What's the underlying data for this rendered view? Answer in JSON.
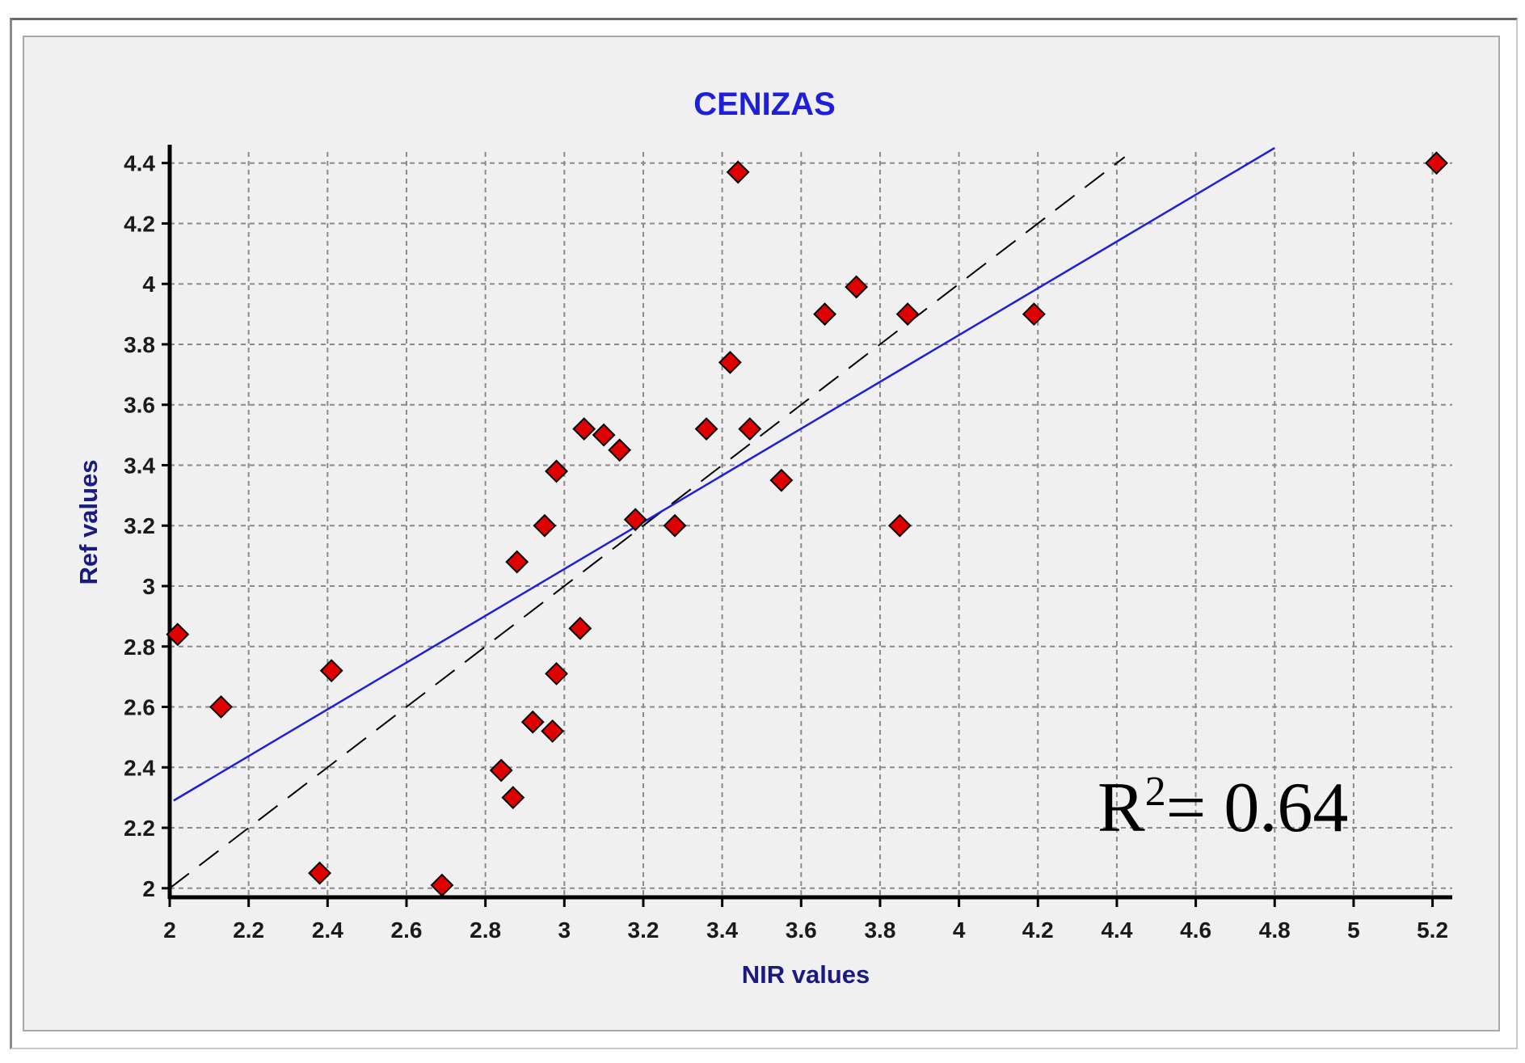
{
  "chart_data": {
    "type": "scatter",
    "title": "CENIZAS",
    "xlabel": "NIR values",
    "ylabel": "Ref values",
    "xlim": [
      2,
      5.25
    ],
    "ylim": [
      1.97,
      4.45
    ],
    "x_ticks": [
      "2",
      "2.2",
      "2.4",
      "2.6",
      "2.8",
      "3",
      "3.2",
      "3.4",
      "3.6",
      "3.8",
      "4",
      "4.2",
      "4.4",
      "4.6",
      "4.8",
      "5",
      "5.2"
    ],
    "y_ticks": [
      "2",
      "2.2",
      "2.4",
      "2.6",
      "2.8",
      "3",
      "3.2",
      "3.4",
      "3.6",
      "3.8",
      "4",
      "4.2",
      "4.4"
    ],
    "grid": true,
    "points": [
      {
        "x": 2.02,
        "y": 2.84
      },
      {
        "x": 2.13,
        "y": 2.6
      },
      {
        "x": 2.38,
        "y": 2.05
      },
      {
        "x": 2.41,
        "y": 2.72
      },
      {
        "x": 2.69,
        "y": 2.01
      },
      {
        "x": 2.84,
        "y": 2.39
      },
      {
        "x": 2.87,
        "y": 2.3
      },
      {
        "x": 2.88,
        "y": 3.08
      },
      {
        "x": 2.92,
        "y": 2.55
      },
      {
        "x": 2.95,
        "y": 3.2
      },
      {
        "x": 2.97,
        "y": 2.52
      },
      {
        "x": 2.98,
        "y": 2.71
      },
      {
        "x": 2.98,
        "y": 3.38
      },
      {
        "x": 3.04,
        "y": 2.86
      },
      {
        "x": 3.05,
        "y": 3.52
      },
      {
        "x": 3.1,
        "y": 3.5
      },
      {
        "x": 3.14,
        "y": 3.45
      },
      {
        "x": 3.18,
        "y": 3.22
      },
      {
        "x": 3.28,
        "y": 3.2
      },
      {
        "x": 3.36,
        "y": 3.52
      },
      {
        "x": 3.42,
        "y": 3.74
      },
      {
        "x": 3.44,
        "y": 4.37
      },
      {
        "x": 3.47,
        "y": 3.52
      },
      {
        "x": 3.55,
        "y": 3.35
      },
      {
        "x": 3.66,
        "y": 3.9
      },
      {
        "x": 3.74,
        "y": 3.99
      },
      {
        "x": 3.85,
        "y": 3.2
      },
      {
        "x": 3.87,
        "y": 3.9
      },
      {
        "x": 4.19,
        "y": 3.9
      },
      {
        "x": 5.21,
        "y": 4.4
      }
    ],
    "regression_line": {
      "color": "#1f1fd8",
      "x": [
        2.01,
        4.8
      ],
      "y": [
        2.29,
        4.45
      ]
    },
    "identity_line": {
      "color": "#000000",
      "style": "dashed",
      "x": [
        2,
        4.42
      ],
      "y": [
        2,
        4.42
      ]
    },
    "marker": {
      "shape": "diamond",
      "fill": "#e00000",
      "stroke": "#000000"
    },
    "annotation": {
      "base": "R",
      "sup": "2",
      "rest": "= 0.64"
    }
  },
  "colors": {
    "title": "#1f1fd8",
    "axis_label": "#1a1a80",
    "grid": "#8a8a8a",
    "background": "#f0f0f0"
  }
}
